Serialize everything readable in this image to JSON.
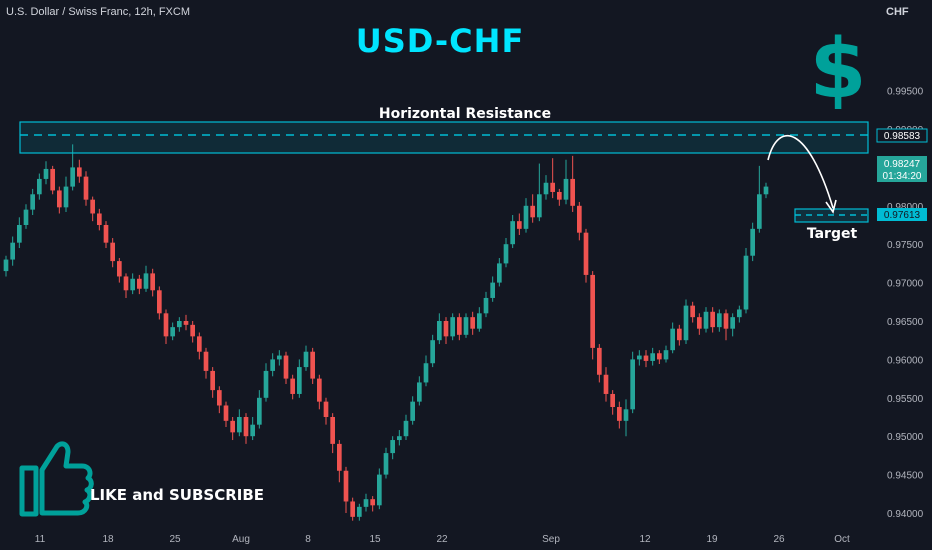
{
  "header": {
    "symbol": "U.S. Dollar / Swiss Franc, 12h, FXCM",
    "title": "USD-CHF",
    "currency": "CHF"
  },
  "annotations": {
    "resistance_label": "Horizontal Resistance",
    "target_label": "Target",
    "like_text": "LIKE and SUBSCRIBE"
  },
  "price_tags": {
    "resistance": "0.98583",
    "current": "0.98247",
    "countdown": "01:34:20",
    "target": "0.97613"
  },
  "colors": {
    "background": "#131722",
    "up": "#26a69a",
    "down": "#ef5350",
    "accent": "#00bcd4",
    "title": "#00e5ff",
    "dollar": "#00a19a"
  },
  "icons": [
    "dollar-sign-icon",
    "thumbs-up-icon"
  ],
  "chart_data": {
    "type": "candlestick",
    "title": "USD-CHF",
    "ylim": [
      0.938,
      1.003
    ],
    "y_ticks": [
      0.995,
      0.99,
      0.985,
      0.98,
      0.975,
      0.97,
      0.965,
      0.96,
      0.955,
      0.95,
      0.945,
      0.94
    ],
    "y_tick_labels": [
      "0.99500",
      "0.99000",
      "0.98500",
      "0.98000",
      "0.97500",
      "0.97000",
      "0.96500",
      "0.96000",
      "0.95500",
      "0.95000",
      "0.94500",
      "0.94000"
    ],
    "x_ticks": [
      "11",
      "18",
      "25",
      "Aug",
      "8",
      "15",
      "22",
      "Sep",
      "12",
      "19",
      "26",
      "Oct"
    ],
    "resistance_zone": [
      0.9838,
      0.9875
    ],
    "resistance_level": 0.98583,
    "target_zone": [
      0.9752,
      0.9768
    ],
    "target_level": 0.97613,
    "current_price": 0.98247,
    "candles": [
      [
        0.9715,
        0.973,
        0.9708,
        0.9735
      ],
      [
        0.973,
        0.9752,
        0.9722,
        0.976
      ],
      [
        0.9752,
        0.9775,
        0.9745,
        0.9785
      ],
      [
        0.9775,
        0.9795,
        0.977,
        0.9802
      ],
      [
        0.9795,
        0.9815,
        0.9788,
        0.9822
      ],
      [
        0.9815,
        0.9835,
        0.9808,
        0.9842
      ],
      [
        0.9835,
        0.9848,
        0.9828,
        0.9858
      ],
      [
        0.9848,
        0.982,
        0.9815,
        0.9852
      ],
      [
        0.982,
        0.9798,
        0.979,
        0.9825
      ],
      [
        0.9798,
        0.9825,
        0.9792,
        0.9838
      ],
      [
        0.9825,
        0.985,
        0.982,
        0.988
      ],
      [
        0.985,
        0.9838,
        0.983,
        0.986
      ],
      [
        0.9838,
        0.9808,
        0.98,
        0.9845
      ],
      [
        0.9808,
        0.979,
        0.978,
        0.9812
      ],
      [
        0.979,
        0.9775,
        0.9768,
        0.9796
      ],
      [
        0.9775,
        0.9752,
        0.9745,
        0.978
      ],
      [
        0.9752,
        0.9728,
        0.972,
        0.9758
      ],
      [
        0.9728,
        0.9708,
        0.97,
        0.9732
      ],
      [
        0.9708,
        0.969,
        0.968,
        0.9712
      ],
      [
        0.969,
        0.9705,
        0.9685,
        0.9712
      ],
      [
        0.9705,
        0.9692,
        0.9685,
        0.971
      ],
      [
        0.9692,
        0.9712,
        0.9688,
        0.9722
      ],
      [
        0.9712,
        0.969,
        0.9682,
        0.9718
      ],
      [
        0.969,
        0.966,
        0.9652,
        0.9695
      ],
      [
        0.966,
        0.963,
        0.962,
        0.9665
      ],
      [
        0.963,
        0.9642,
        0.9625,
        0.9648
      ],
      [
        0.9642,
        0.965,
        0.9636,
        0.9655
      ],
      [
        0.965,
        0.9645,
        0.9638,
        0.9658
      ],
      [
        0.9645,
        0.963,
        0.9622,
        0.965
      ],
      [
        0.963,
        0.961,
        0.96,
        0.9635
      ],
      [
        0.961,
        0.9585,
        0.9575,
        0.9615
      ],
      [
        0.9585,
        0.956,
        0.955,
        0.959
      ],
      [
        0.956,
        0.954,
        0.953,
        0.9565
      ],
      [
        0.954,
        0.952,
        0.9512,
        0.9545
      ],
      [
        0.952,
        0.9505,
        0.9495,
        0.9525
      ],
      [
        0.9505,
        0.9525,
        0.95,
        0.9535
      ],
      [
        0.9525,
        0.95,
        0.949,
        0.953
      ],
      [
        0.95,
        0.9515,
        0.9495,
        0.9525
      ],
      [
        0.9515,
        0.955,
        0.951,
        0.956
      ],
      [
        0.955,
        0.9585,
        0.9545,
        0.9595
      ],
      [
        0.9585,
        0.96,
        0.9578,
        0.9608
      ],
      [
        0.96,
        0.9605,
        0.9592,
        0.9612
      ],
      [
        0.9605,
        0.9575,
        0.9568,
        0.961
      ],
      [
        0.9575,
        0.9555,
        0.9548,
        0.958
      ],
      [
        0.9555,
        0.959,
        0.955,
        0.96
      ],
      [
        0.959,
        0.961,
        0.9585,
        0.9618
      ],
      [
        0.961,
        0.9575,
        0.9568,
        0.9615
      ],
      [
        0.9575,
        0.9545,
        0.9535,
        0.958
      ],
      [
        0.9545,
        0.9525,
        0.9515,
        0.955
      ],
      [
        0.9525,
        0.949,
        0.9478,
        0.953
      ],
      [
        0.949,
        0.9455,
        0.944,
        0.9495
      ],
      [
        0.9455,
        0.9415,
        0.94,
        0.946
      ],
      [
        0.9415,
        0.9395,
        0.939,
        0.942
      ],
      [
        0.9395,
        0.9408,
        0.939,
        0.9412
      ],
      [
        0.9408,
        0.9418,
        0.9402,
        0.9425
      ],
      [
        0.9418,
        0.941,
        0.9402,
        0.9422
      ],
      [
        0.941,
        0.945,
        0.9405,
        0.9458
      ],
      [
        0.945,
        0.9478,
        0.9445,
        0.9485
      ],
      [
        0.9478,
        0.9495,
        0.947,
        0.95
      ],
      [
        0.9495,
        0.95,
        0.9488,
        0.9508
      ],
      [
        0.95,
        0.952,
        0.9495,
        0.9528
      ],
      [
        0.952,
        0.9545,
        0.9515,
        0.9552
      ],
      [
        0.9545,
        0.957,
        0.954,
        0.9578
      ],
      [
        0.957,
        0.9595,
        0.9565,
        0.9605
      ],
      [
        0.9595,
        0.9625,
        0.959,
        0.9632
      ],
      [
        0.9625,
        0.965,
        0.962,
        0.966
      ],
      [
        0.965,
        0.963,
        0.962,
        0.9655
      ],
      [
        0.963,
        0.9655,
        0.9625,
        0.966
      ],
      [
        0.9655,
        0.9632,
        0.9625,
        0.966
      ],
      [
        0.9632,
        0.9655,
        0.9628,
        0.966
      ],
      [
        0.9655,
        0.964,
        0.9632,
        0.9662
      ],
      [
        0.964,
        0.966,
        0.9636,
        0.9668
      ],
      [
        0.966,
        0.968,
        0.9655,
        0.9688
      ],
      [
        0.968,
        0.97,
        0.9675,
        0.9708
      ],
      [
        0.97,
        0.9725,
        0.9695,
        0.9732
      ],
      [
        0.9725,
        0.975,
        0.972,
        0.9758
      ],
      [
        0.975,
        0.978,
        0.9745,
        0.9788
      ],
      [
        0.978,
        0.977,
        0.9762,
        0.979
      ],
      [
        0.977,
        0.98,
        0.9765,
        0.981
      ],
      [
        0.98,
        0.9785,
        0.9778,
        0.9815
      ],
      [
        0.9785,
        0.9815,
        0.978,
        0.9855
      ],
      [
        0.9815,
        0.983,
        0.9808,
        0.984
      ],
      [
        0.983,
        0.9818,
        0.981,
        0.9862
      ],
      [
        0.9818,
        0.9808,
        0.98,
        0.9822
      ],
      [
        0.9808,
        0.9835,
        0.9802,
        0.986
      ],
      [
        0.9835,
        0.98,
        0.9792,
        0.9865
      ],
      [
        0.98,
        0.9765,
        0.9755,
        0.9805
      ],
      [
        0.9765,
        0.971,
        0.97,
        0.977
      ],
      [
        0.971,
        0.9615,
        0.96,
        0.9715
      ],
      [
        0.9615,
        0.958,
        0.957,
        0.962
      ],
      [
        0.958,
        0.9555,
        0.9545,
        0.959
      ],
      [
        0.9555,
        0.9538,
        0.9528,
        0.956
      ],
      [
        0.9538,
        0.952,
        0.951,
        0.9545
      ],
      [
        0.952,
        0.9535,
        0.95,
        0.9548
      ],
      [
        0.9535,
        0.96,
        0.953,
        0.961
      ],
      [
        0.96,
        0.9605,
        0.9592,
        0.9612
      ],
      [
        0.9605,
        0.9598,
        0.959,
        0.9612
      ],
      [
        0.9598,
        0.9608,
        0.9592,
        0.9615
      ],
      [
        0.9608,
        0.96,
        0.9594,
        0.9612
      ],
      [
        0.96,
        0.9612,
        0.9596,
        0.9618
      ],
      [
        0.9612,
        0.964,
        0.9608,
        0.9648
      ],
      [
        0.964,
        0.9625,
        0.9618,
        0.9645
      ],
      [
        0.9625,
        0.967,
        0.962,
        0.9678
      ],
      [
        0.967,
        0.9655,
        0.9648,
        0.9675
      ],
      [
        0.9655,
        0.964,
        0.9632,
        0.966
      ],
      [
        0.964,
        0.9662,
        0.9635,
        0.9668
      ],
      [
        0.9662,
        0.9642,
        0.9635,
        0.9668
      ],
      [
        0.9642,
        0.966,
        0.9636,
        0.9665
      ],
      [
        0.966,
        0.964,
        0.9625,
        0.9665
      ],
      [
        0.964,
        0.9655,
        0.963,
        0.966
      ],
      [
        0.9655,
        0.9665,
        0.9648,
        0.967
      ],
      [
        0.9665,
        0.9735,
        0.966,
        0.9745
      ],
      [
        0.9735,
        0.977,
        0.9728,
        0.9778
      ],
      [
        0.977,
        0.9815,
        0.9765,
        0.9852
      ],
      [
        0.9815,
        0.9825,
        0.981,
        0.983
      ]
    ]
  }
}
